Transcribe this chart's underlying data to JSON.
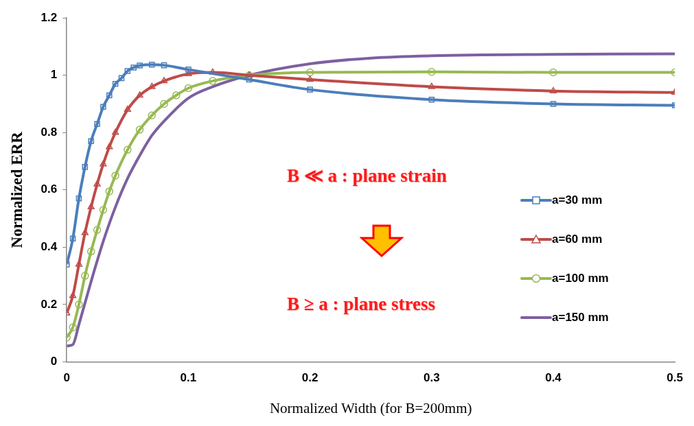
{
  "chart_data": {
    "type": "line",
    "xlabel": "Normalized Width (for B=200mm)",
    "ylabel": "Normalized ERR",
    "xlim": [
      0,
      0.5
    ],
    "xticks": [
      0,
      0.1,
      0.2,
      0.3,
      0.4,
      0.5
    ],
    "ylim": [
      0,
      1.2
    ],
    "yticks": [
      0,
      0.2,
      0.4,
      0.6,
      0.8,
      1,
      1.2
    ],
    "grid": false,
    "legend": "right",
    "line_style": "solid",
    "annotations": [
      "B ≪ a : plane strain",
      "B ≥ a : plane stress"
    ],
    "series": [
      {
        "name": "a=30 mm",
        "color": "#4a7ebb",
        "marker": "square",
        "x": [
          0,
          0.005,
          0.01,
          0.015,
          0.02,
          0.025,
          0.03,
          0.035,
          0.04,
          0.045,
          0.05,
          0.055,
          0.06,
          0.07,
          0.08,
          0.1,
          0.15,
          0.2,
          0.3,
          0.4,
          0.5
        ],
        "values": [
          0.34,
          0.43,
          0.57,
          0.68,
          0.77,
          0.83,
          0.89,
          0.93,
          0.97,
          0.99,
          1.015,
          1.027,
          1.034,
          1.037,
          1.035,
          1.02,
          0.985,
          0.95,
          0.915,
          0.9,
          0.895
        ]
      },
      {
        "name": "a=60 mm",
        "color": "#be4b48",
        "marker": "triangle",
        "x": [
          0,
          0.005,
          0.01,
          0.015,
          0.02,
          0.025,
          0.03,
          0.035,
          0.04,
          0.05,
          0.06,
          0.07,
          0.08,
          0.1,
          0.12,
          0.15,
          0.2,
          0.3,
          0.4,
          0.5
        ],
        "values": [
          0.17,
          0.23,
          0.34,
          0.45,
          0.54,
          0.62,
          0.69,
          0.75,
          0.8,
          0.88,
          0.93,
          0.96,
          0.98,
          1.005,
          1.01,
          1.0,
          0.985,
          0.96,
          0.945,
          0.94
        ]
      },
      {
        "name": "a=100 mm",
        "color": "#98b954",
        "marker": "circle",
        "x": [
          0,
          0.005,
          0.01,
          0.015,
          0.02,
          0.025,
          0.03,
          0.035,
          0.04,
          0.05,
          0.06,
          0.07,
          0.08,
          0.09,
          0.1,
          0.12,
          0.15,
          0.2,
          0.3,
          0.4,
          0.5
        ],
        "values": [
          0.085,
          0.12,
          0.2,
          0.3,
          0.385,
          0.46,
          0.53,
          0.595,
          0.65,
          0.74,
          0.81,
          0.86,
          0.9,
          0.93,
          0.955,
          0.98,
          1.0,
          1.01,
          1.012,
          1.01,
          1.01
        ]
      },
      {
        "name": "a=150 mm",
        "color": "#7d60a0",
        "marker": "none",
        "x": [
          0,
          0.005,
          0.01,
          0.02,
          0.03,
          0.04,
          0.05,
          0.06,
          0.07,
          0.08,
          0.1,
          0.12,
          0.15,
          0.2,
          0.25,
          0.3,
          0.4,
          0.5
        ],
        "values": [
          0.055,
          0.06,
          0.13,
          0.28,
          0.42,
          0.54,
          0.64,
          0.72,
          0.79,
          0.84,
          0.92,
          0.96,
          1.0,
          1.04,
          1.06,
          1.068,
          1.073,
          1.075
        ]
      }
    ]
  }
}
